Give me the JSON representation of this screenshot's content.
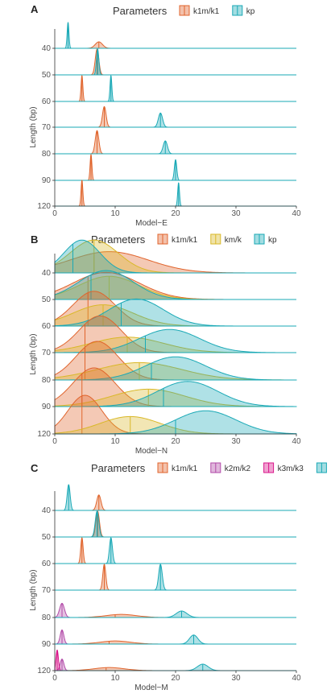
{
  "colors": {
    "k1m/k1": "#e0642c",
    "km/k": "#d9b828",
    "kp": "#1aa9b6",
    "k2m/k2": "#b24aa8",
    "k3m/k3": "#d9158a"
  },
  "chart_data": [
    {
      "panel": "A",
      "type": "ridgeline",
      "legend_title": "Parameters",
      "legend_placement": "top",
      "legend": [
        "k1m/k1",
        "kp"
      ],
      "xlabel": "Model−E",
      "ylabel": "Length (bp)",
      "xlim": [
        0,
        40
      ],
      "xticks": [
        "0",
        "10",
        "20",
        "30",
        "40"
      ],
      "rows": [
        "40",
        "50",
        "60",
        "70",
        "80",
        "90",
        "120"
      ],
      "series": [
        {
          "name": "k1m/k1",
          "peaks": [
            [
              7.3,
              0.6,
              0.25
            ],
            [
              7.0,
              0.3,
              1.0
            ],
            [
              4.5,
              0.15,
              1.0
            ],
            [
              8.2,
              0.3,
              0.8
            ],
            [
              7.0,
              0.3,
              0.9
            ],
            [
              6.0,
              0.15,
              1.0
            ],
            [
              4.5,
              0.15,
              1.0
            ]
          ],
          "modes": [
            7.3,
            7.0,
            4.5,
            8.2,
            7.0,
            6.0,
            4.5
          ]
        },
        {
          "name": "kp",
          "peaks": [
            [
              2.2,
              0.15,
              1.0
            ],
            [
              7.1,
              0.2,
              1.0
            ],
            [
              9.3,
              0.15,
              1.0
            ],
            [
              17.5,
              0.35,
              0.55
            ],
            [
              18.3,
              0.35,
              0.5
            ],
            [
              20.0,
              0.2,
              0.8
            ],
            [
              20.5,
              0.15,
              0.9
            ]
          ],
          "modes": [
            2.2,
            7.1,
            9.3,
            17.5,
            18.3,
            20.0,
            20.5
          ]
        }
      ]
    },
    {
      "panel": "B",
      "type": "ridgeline",
      "legend_title": "Parameters",
      "legend_placement": "top",
      "legend": [
        "k1m/k1",
        "km/k",
        "kp"
      ],
      "xlabel": "Model−N",
      "ylabel": "Length (bp)",
      "xlim": [
        0,
        40
      ],
      "xticks": [
        "0",
        "10",
        "20",
        "30",
        "40"
      ],
      "rows": [
        "40",
        "50",
        "60",
        "70",
        "80",
        "90",
        "120"
      ],
      "series": [
        {
          "name": "k1m/k1",
          "peaks": [
            [
              9.0,
              6.5,
              0.55
            ],
            [
              8.5,
              5.5,
              0.7
            ],
            [
              6.5,
              3.5,
              0.9
            ],
            [
              7.5,
              3.5,
              0.95
            ],
            [
              7.0,
              3.5,
              1.0
            ],
            [
              6.5,
              3.5,
              1.0
            ],
            [
              5.0,
              2.8,
              1.0
            ]
          ],
          "modes": [
            6.5,
            5.5,
            5.5,
            5.0,
            5.0,
            4.5,
            4.5
          ]
        },
        {
          "name": "km/k",
          "peaks": [
            [
              6.5,
              4.0,
              0.85
            ],
            [
              9.0,
              5.0,
              0.6
            ],
            [
              8.0,
              5.0,
              0.55
            ],
            [
              12.0,
              6.0,
              0.4
            ],
            [
              14.0,
              7.0,
              0.45
            ],
            [
              15.5,
              6.0,
              0.45
            ],
            [
              12.5,
              5.0,
              0.45
            ]
          ],
          "modes": [
            6.5,
            9.0,
            8.0,
            12.0,
            14.0,
            15.5,
            12.5
          ]
        },
        {
          "name": "kp",
          "peaks": [
            [
              4.5,
              3.0,
              0.85
            ],
            [
              8.5,
              4.5,
              0.75
            ],
            [
              13.5,
              4.5,
              0.7
            ],
            [
              19.0,
              5.0,
              0.6
            ],
            [
              20.0,
              5.0,
              0.6
            ],
            [
              22.0,
              5.0,
              0.65
            ],
            [
              25.0,
              5.0,
              0.6
            ]
          ],
          "modes": [
            3.0,
            6.0,
            11.0,
            15.0,
            16.0,
            18.0,
            20.0
          ]
        }
      ]
    },
    {
      "panel": "C",
      "type": "ridgeline",
      "legend_title": "Parameters",
      "legend_placement": "top",
      "legend": [
        "k1m/k1",
        "k2m/k2",
        "k3m/k3",
        "kp"
      ],
      "xlabel": "Model−M",
      "ylabel": "Length (bp)",
      "xlim": [
        0,
        40
      ],
      "xticks": [
        "0",
        "10",
        "20",
        "30",
        "40"
      ],
      "rows": [
        "40",
        "50",
        "60",
        "70",
        "80",
        "90",
        "120"
      ],
      "series": [
        {
          "name": "k1m/k1",
          "peaks": [
            [
              7.3,
              0.35,
              0.6
            ],
            [
              7.1,
              0.3,
              1.0
            ],
            [
              4.5,
              0.2,
              1.0
            ],
            [
              8.2,
              0.25,
              1.0
            ],
            [
              11.0,
              2.5,
              0.12
            ],
            [
              10.0,
              2.5,
              0.12
            ],
            [
              9.0,
              2.5,
              0.12
            ]
          ],
          "modes": [
            7.3,
            7.1,
            4.5,
            8.2,
            10.0,
            9.0,
            8.5
          ]
        },
        {
          "name": "k2m/k2",
          "peaks": [
            [
              0,
              1,
              0
            ],
            [
              0,
              1,
              0
            ],
            [
              0,
              1,
              0
            ],
            [
              0,
              1,
              0
            ],
            [
              1.2,
              0.4,
              0.55
            ],
            [
              1.2,
              0.3,
              0.55
            ],
            [
              1.2,
              0.3,
              0.45
            ]
          ],
          "modes": [
            null,
            null,
            null,
            null,
            1.2,
            1.2,
            1.2
          ]
        },
        {
          "name": "k3m/k3",
          "peaks": [
            [
              0,
              1,
              0
            ],
            [
              0,
              1,
              0
            ],
            [
              0,
              1,
              0
            ],
            [
              0,
              1,
              0
            ],
            [
              0,
              1,
              0
            ],
            [
              0,
              1,
              0
            ],
            [
              0.4,
              0.2,
              0.8
            ]
          ],
          "modes": [
            null,
            null,
            null,
            null,
            null,
            null,
            0.4
          ]
        },
        {
          "name": "kp",
          "peaks": [
            [
              2.3,
              0.25,
              1.0
            ],
            [
              7.0,
              0.3,
              1.0
            ],
            [
              9.3,
              0.25,
              1.0
            ],
            [
              17.5,
              0.3,
              1.0
            ],
            [
              21.0,
              0.9,
              0.25
            ],
            [
              23.0,
              0.7,
              0.35
            ],
            [
              24.5,
              0.9,
              0.25
            ]
          ],
          "modes": [
            2.3,
            7.0,
            9.3,
            17.5,
            21.0,
            23.0,
            24.5
          ]
        }
      ]
    }
  ]
}
